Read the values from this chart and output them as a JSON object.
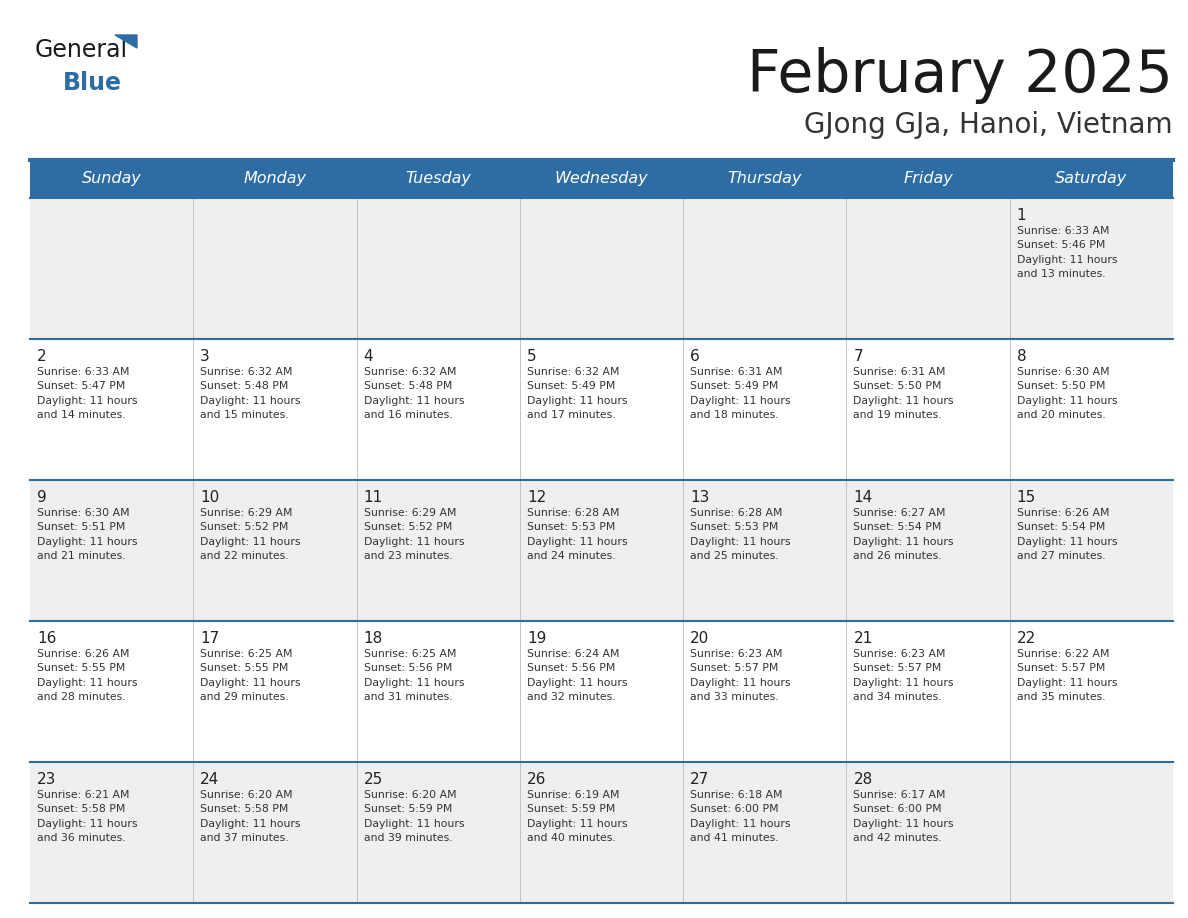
{
  "title": "February 2025",
  "subtitle": "GJong GJa, Hanoi, Vietnam",
  "days_of_week": [
    "Sunday",
    "Monday",
    "Tuesday",
    "Wednesday",
    "Thursday",
    "Friday",
    "Saturday"
  ],
  "header_bg": "#2E6DA4",
  "header_text": "#FFFFFF",
  "cell_bg_light": "#EFEFEF",
  "cell_bg_white": "#FFFFFF",
  "border_color": "#2E6DA4",
  "title_color": "#1a1a1a",
  "subtitle_color": "#333333",
  "day_num_color": "#222222",
  "info_color": "#333333",
  "logo_general_color": "#1a1a1a",
  "logo_blue_color": "#2E6DA4",
  "logo_triangle_color": "#2E6DA4",
  "weeks": [
    [
      {
        "day": null,
        "info": null
      },
      {
        "day": null,
        "info": null
      },
      {
        "day": null,
        "info": null
      },
      {
        "day": null,
        "info": null
      },
      {
        "day": null,
        "info": null
      },
      {
        "day": null,
        "info": null
      },
      {
        "day": 1,
        "info": "Sunrise: 6:33 AM\nSunset: 5:46 PM\nDaylight: 11 hours\nand 13 minutes."
      }
    ],
    [
      {
        "day": 2,
        "info": "Sunrise: 6:33 AM\nSunset: 5:47 PM\nDaylight: 11 hours\nand 14 minutes."
      },
      {
        "day": 3,
        "info": "Sunrise: 6:32 AM\nSunset: 5:48 PM\nDaylight: 11 hours\nand 15 minutes."
      },
      {
        "day": 4,
        "info": "Sunrise: 6:32 AM\nSunset: 5:48 PM\nDaylight: 11 hours\nand 16 minutes."
      },
      {
        "day": 5,
        "info": "Sunrise: 6:32 AM\nSunset: 5:49 PM\nDaylight: 11 hours\nand 17 minutes."
      },
      {
        "day": 6,
        "info": "Sunrise: 6:31 AM\nSunset: 5:49 PM\nDaylight: 11 hours\nand 18 minutes."
      },
      {
        "day": 7,
        "info": "Sunrise: 6:31 AM\nSunset: 5:50 PM\nDaylight: 11 hours\nand 19 minutes."
      },
      {
        "day": 8,
        "info": "Sunrise: 6:30 AM\nSunset: 5:50 PM\nDaylight: 11 hours\nand 20 minutes."
      }
    ],
    [
      {
        "day": 9,
        "info": "Sunrise: 6:30 AM\nSunset: 5:51 PM\nDaylight: 11 hours\nand 21 minutes."
      },
      {
        "day": 10,
        "info": "Sunrise: 6:29 AM\nSunset: 5:52 PM\nDaylight: 11 hours\nand 22 minutes."
      },
      {
        "day": 11,
        "info": "Sunrise: 6:29 AM\nSunset: 5:52 PM\nDaylight: 11 hours\nand 23 minutes."
      },
      {
        "day": 12,
        "info": "Sunrise: 6:28 AM\nSunset: 5:53 PM\nDaylight: 11 hours\nand 24 minutes."
      },
      {
        "day": 13,
        "info": "Sunrise: 6:28 AM\nSunset: 5:53 PM\nDaylight: 11 hours\nand 25 minutes."
      },
      {
        "day": 14,
        "info": "Sunrise: 6:27 AM\nSunset: 5:54 PM\nDaylight: 11 hours\nand 26 minutes."
      },
      {
        "day": 15,
        "info": "Sunrise: 6:26 AM\nSunset: 5:54 PM\nDaylight: 11 hours\nand 27 minutes."
      }
    ],
    [
      {
        "day": 16,
        "info": "Sunrise: 6:26 AM\nSunset: 5:55 PM\nDaylight: 11 hours\nand 28 minutes."
      },
      {
        "day": 17,
        "info": "Sunrise: 6:25 AM\nSunset: 5:55 PM\nDaylight: 11 hours\nand 29 minutes."
      },
      {
        "day": 18,
        "info": "Sunrise: 6:25 AM\nSunset: 5:56 PM\nDaylight: 11 hours\nand 31 minutes."
      },
      {
        "day": 19,
        "info": "Sunrise: 6:24 AM\nSunset: 5:56 PM\nDaylight: 11 hours\nand 32 minutes."
      },
      {
        "day": 20,
        "info": "Sunrise: 6:23 AM\nSunset: 5:57 PM\nDaylight: 11 hours\nand 33 minutes."
      },
      {
        "day": 21,
        "info": "Sunrise: 6:23 AM\nSunset: 5:57 PM\nDaylight: 11 hours\nand 34 minutes."
      },
      {
        "day": 22,
        "info": "Sunrise: 6:22 AM\nSunset: 5:57 PM\nDaylight: 11 hours\nand 35 minutes."
      }
    ],
    [
      {
        "day": 23,
        "info": "Sunrise: 6:21 AM\nSunset: 5:58 PM\nDaylight: 11 hours\nand 36 minutes."
      },
      {
        "day": 24,
        "info": "Sunrise: 6:20 AM\nSunset: 5:58 PM\nDaylight: 11 hours\nand 37 minutes."
      },
      {
        "day": 25,
        "info": "Sunrise: 6:20 AM\nSunset: 5:59 PM\nDaylight: 11 hours\nand 39 minutes."
      },
      {
        "day": 26,
        "info": "Sunrise: 6:19 AM\nSunset: 5:59 PM\nDaylight: 11 hours\nand 40 minutes."
      },
      {
        "day": 27,
        "info": "Sunrise: 6:18 AM\nSunset: 6:00 PM\nDaylight: 11 hours\nand 41 minutes."
      },
      {
        "day": 28,
        "info": "Sunrise: 6:17 AM\nSunset: 6:00 PM\nDaylight: 11 hours\nand 42 minutes."
      },
      {
        "day": null,
        "info": null
      }
    ]
  ]
}
